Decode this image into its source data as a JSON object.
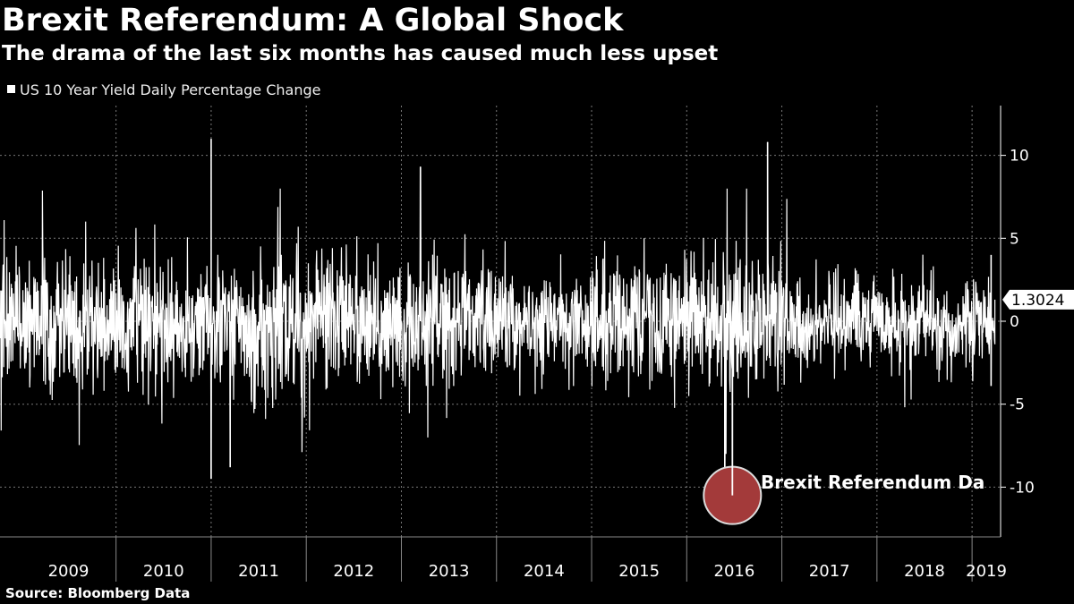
{
  "header": {
    "title": "Brexit Referendum: A Global Shock",
    "subtitle": "The drama of the last six months has caused much less upset"
  },
  "footer": {
    "source": "Source: Bloomberg Data"
  },
  "colors": {
    "background": "#000000",
    "series": "#ffffff",
    "highlight": "#a33a3a",
    "grid": "#777777"
  },
  "chart_data": {
    "type": "bar",
    "title": "Brexit Referendum: A Global Shock",
    "subtitle": "The drama of the last six months has caused much less upset",
    "legend": [
      "US 10 Year Yield Daily Percentage Change"
    ],
    "legend_position": "top-left",
    "xlabel": "",
    "ylabel": "",
    "x_categories": [
      "2009",
      "2010",
      "2011",
      "2012",
      "2013",
      "2014",
      "2015",
      "2016",
      "2017",
      "2018",
      "2019"
    ],
    "y_ticks": [
      -10,
      -5,
      0,
      5,
      10
    ],
    "y_tick_labels": [
      "-10",
      "-5",
      "0",
      "5",
      "10"
    ],
    "ylim": [
      -13,
      13
    ],
    "xlim": [
      2008.78,
      2019.3
    ],
    "grid": true,
    "last_value": 1.3024,
    "last_value_label": "1.3024",
    "annotation": {
      "text": "Brexit Referendum Da",
      "date": 2016.48,
      "value": -10.5
    },
    "series_summary": "Dense daily series (~2600 points), typical range roughly -5 to +5",
    "notable_points": [
      {
        "x": 2011.0,
        "value": 11.0
      },
      {
        "x": 2011.0,
        "value": -9.5
      },
      {
        "x": 2011.2,
        "value": -8.8
      },
      {
        "x": 2013.2,
        "value": 9.3
      },
      {
        "x": 2016.4,
        "value": -10.5
      },
      {
        "x": 2016.85,
        "value": 10.8
      },
      {
        "x": 2019.2,
        "value": 4.0
      },
      {
        "x": 2019.2,
        "value": -3.9
      }
    ]
  }
}
